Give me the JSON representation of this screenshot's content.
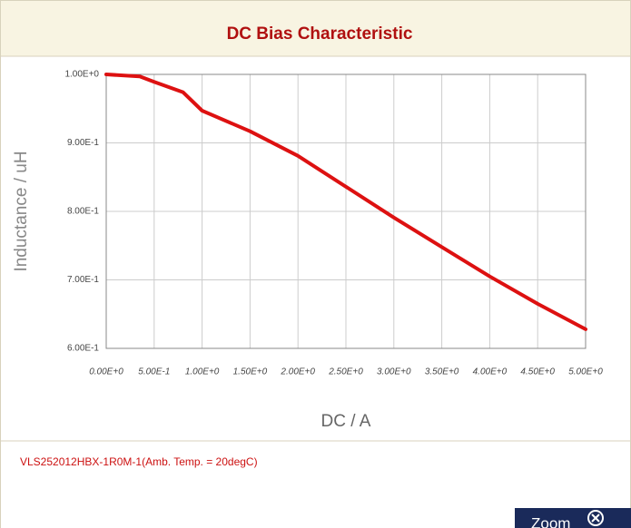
{
  "chart_data": {
    "type": "line",
    "title": "DC Bias Characteristic",
    "xlabel": "DC / A",
    "ylabel": "Inductance / uH",
    "x": [
      0,
      0.35,
      0.5,
      0.8,
      1.0,
      1.5,
      2.0,
      2.5,
      3.0,
      3.5,
      4.0,
      4.5,
      5.0
    ],
    "series": [
      {
        "name": "VLS252012HBX-1R0M-1(Amb. Temp. = 20degC)",
        "color": "#dd1111",
        "values": [
          1.0,
          0.997,
          0.989,
          0.974,
          0.947,
          0.917,
          0.881,
          0.836,
          0.791,
          0.748,
          0.705,
          0.665,
          0.628
        ]
      }
    ],
    "xlim": [
      0,
      5
    ],
    "ylim": [
      0.6,
      1.0
    ],
    "xticks": [
      {
        "value": 0,
        "label": "0.00E+0"
      },
      {
        "value": 0.5,
        "label": "5.00E-1"
      },
      {
        "value": 1.0,
        "label": "1.00E+0"
      },
      {
        "value": 1.5,
        "label": "1.50E+0"
      },
      {
        "value": 2.0,
        "label": "2.00E+0"
      },
      {
        "value": 2.5,
        "label": "2.50E+0"
      },
      {
        "value": 3.0,
        "label": "3.00E+0"
      },
      {
        "value": 3.5,
        "label": "3.50E+0"
      },
      {
        "value": 4.0,
        "label": "4.00E+0"
      },
      {
        "value": 4.5,
        "label": "4.50E+0"
      },
      {
        "value": 5.0,
        "label": "5.00E+0"
      }
    ],
    "yticks": [
      {
        "value": 0.6,
        "label": "6.00E-1"
      },
      {
        "value": 0.7,
        "label": "7.00E-1"
      },
      {
        "value": 0.8,
        "label": "8.00E-1"
      },
      {
        "value": 0.9,
        "label": "9.00E-1"
      },
      {
        "value": 1.0,
        "label": "1.00E+0"
      }
    ],
    "grid": true
  },
  "ui": {
    "button": "Zoom"
  }
}
